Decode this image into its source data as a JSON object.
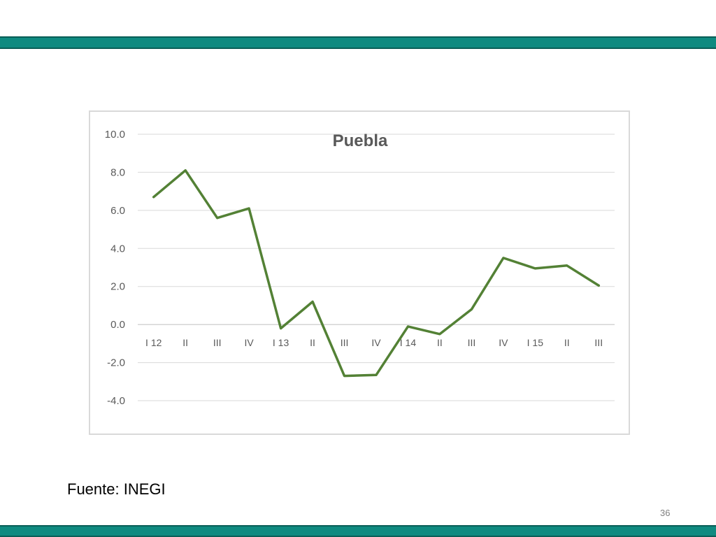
{
  "slide": {
    "source_note": "Fuente: INEGI",
    "page_number": "36",
    "bar_color": "#0f8a80"
  },
  "chart_data": {
    "type": "line",
    "title": "Puebla",
    "xlabel": "",
    "ylabel": "",
    "categories": [
      "I 12",
      "II",
      "III",
      "IV",
      "I 13",
      "II",
      "III",
      "IV",
      "I 14",
      "II",
      "III",
      "IV",
      "I 15",
      "II",
      "III"
    ],
    "series": [
      {
        "values": [
          6.7,
          8.1,
          5.6,
          6.1,
          -0.2,
          1.2,
          -2.7,
          -2.65,
          -0.1,
          -0.5,
          0.8,
          3.5,
          2.95,
          3.1,
          2.05
        ],
        "color": "#538135"
      }
    ],
    "ylim": [
      -4.0,
      10.0
    ],
    "yticks": [
      "10.0",
      "8.0",
      "6.0",
      "4.0",
      "2.0",
      "0.0",
      "-2.0",
      "-4.0"
    ],
    "grid": true,
    "legend": "none"
  }
}
